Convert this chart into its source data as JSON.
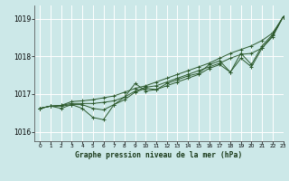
{
  "title": "Graphe pression niveau de la mer (hPa)",
  "bg_color": "#cce8e8",
  "grid_color": "#ffffff",
  "line_color": "#2d5a2d",
  "xlim": [
    -0.5,
    23
  ],
  "ylim": [
    1015.75,
    1019.35
  ],
  "yticks": [
    1016,
    1017,
    1018,
    1019
  ],
  "xticks": [
    0,
    1,
    2,
    3,
    4,
    5,
    6,
    7,
    8,
    9,
    10,
    11,
    12,
    13,
    14,
    15,
    16,
    17,
    18,
    19,
    20,
    21,
    22,
    23
  ],
  "series": [
    [
      1016.62,
      1016.68,
      1016.68,
      1016.72,
      1016.72,
      1016.62,
      1016.58,
      1016.72,
      1016.85,
      1017.05,
      1017.15,
      1017.12,
      1017.22,
      1017.32,
      1017.42,
      1017.52,
      1017.68,
      1017.78,
      1017.58,
      1017.95,
      1017.72,
      1018.22,
      1018.52,
      1019.05
    ],
    [
      1016.62,
      1016.68,
      1016.7,
      1016.75,
      1016.75,
      1016.75,
      1016.78,
      1016.82,
      1016.92,
      1017.08,
      1017.18,
      1017.22,
      1017.32,
      1017.42,
      1017.52,
      1017.62,
      1017.72,
      1017.82,
      1017.95,
      1018.05,
      1018.08,
      1018.22,
      1018.55,
      1019.05
    ],
    [
      1016.62,
      1016.68,
      1016.62,
      1016.72,
      1016.62,
      1016.38,
      1016.32,
      1016.72,
      1016.92,
      1017.28,
      1017.08,
      1017.12,
      1017.28,
      1017.38,
      1017.48,
      1017.55,
      1017.78,
      1017.88,
      1017.58,
      1018.08,
      1017.78,
      1018.28,
      1018.58,
      1019.05
    ],
    [
      1016.62,
      1016.68,
      1016.7,
      1016.8,
      1016.82,
      1016.85,
      1016.9,
      1016.95,
      1017.05,
      1017.15,
      1017.22,
      1017.32,
      1017.42,
      1017.52,
      1017.62,
      1017.72,
      1017.82,
      1017.95,
      1018.08,
      1018.18,
      1018.28,
      1018.42,
      1018.62,
      1019.05
    ]
  ]
}
